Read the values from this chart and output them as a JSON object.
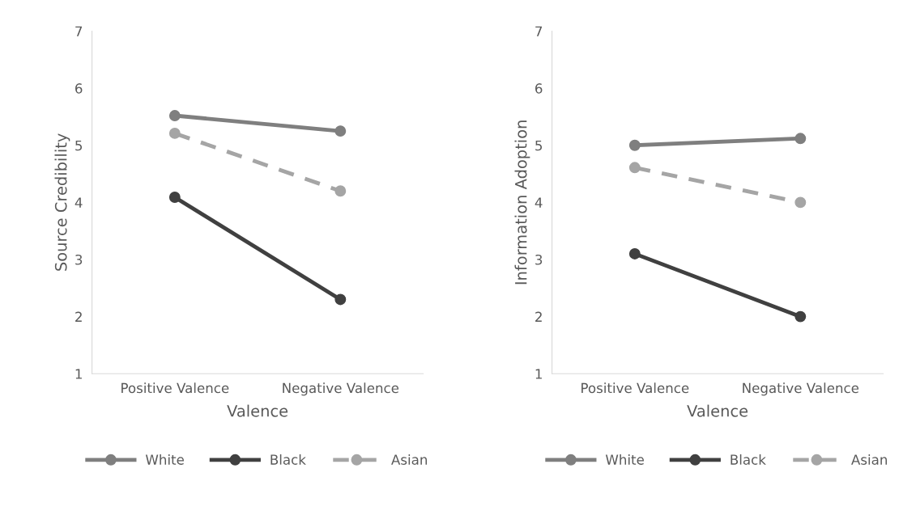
{
  "chart_data": [
    {
      "type": "line",
      "xlabel": "Valence",
      "ylabel": "Source Credibility",
      "categories": [
        "Positive Valence",
        "Negative Valence"
      ],
      "ylim": [
        1,
        7
      ],
      "yticks": [
        1,
        2,
        3,
        4,
        5,
        6,
        7
      ],
      "grid": false,
      "legend": "bottom",
      "marker": "circle",
      "series": [
        {
          "name": "White",
          "color": "#7f7f7f",
          "values": [
            5.52,
            5.25
          ]
        },
        {
          "name": "Black",
          "color": "#404040",
          "values": [
            4.09,
            2.3
          ]
        },
        {
          "name": "Asian",
          "color": "#a5a5a5",
          "values": [
            5.21,
            4.2
          ],
          "line_style": "dashed"
        }
      ]
    },
    {
      "type": "line",
      "xlabel": "Valence",
      "ylabel": "Information Adoption",
      "categories": [
        "Positive Valence",
        "Negative Valence"
      ],
      "ylim": [
        1,
        7
      ],
      "yticks": [
        1,
        2,
        3,
        4,
        5,
        6,
        7
      ],
      "grid": false,
      "legend": "bottom",
      "marker": "circle",
      "series": [
        {
          "name": "White",
          "color": "#7f7f7f",
          "values": [
            5.0,
            5.12
          ]
        },
        {
          "name": "Black",
          "color": "#404040",
          "values": [
            3.1,
            2.0
          ]
        },
        {
          "name": "Asian",
          "color": "#a5a5a5",
          "values": [
            4.61,
            4.0
          ],
          "line_style": "dashed"
        }
      ]
    }
  ]
}
